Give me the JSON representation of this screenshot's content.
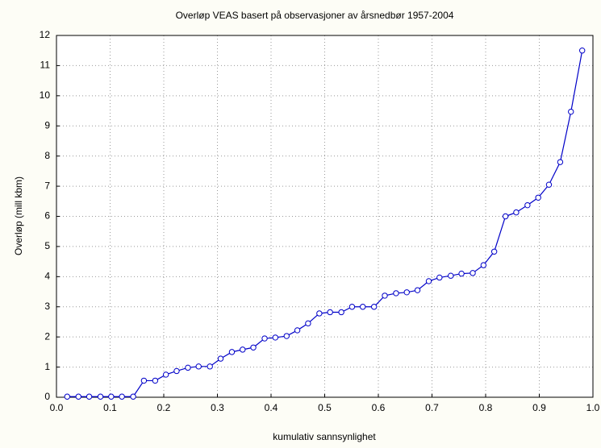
{
  "chart_data": {
    "type": "line",
    "title": "Overløp VEAS basert på observasjoner av årsnedbør 1957-2004",
    "x_label": "kumulativ sannsynlighet",
    "y_label": "Overløp (mill kbm)",
    "color": "#0000c8",
    "marker": "circle",
    "grid": true,
    "x": [
      0.02,
      0.041,
      0.061,
      0.082,
      0.102,
      0.122,
      0.143,
      0.163,
      0.184,
      0.204,
      0.224,
      0.245,
      0.265,
      0.286,
      0.306,
      0.327,
      0.347,
      0.367,
      0.388,
      0.408,
      0.429,
      0.449,
      0.469,
      0.49,
      0.51,
      0.531,
      0.551,
      0.571,
      0.592,
      0.612,
      0.633,
      0.653,
      0.673,
      0.694,
      0.714,
      0.735,
      0.755,
      0.776,
      0.796,
      0.816,
      0.837,
      0.857,
      0.878,
      0.898,
      0.918,
      0.939,
      0.959,
      0.98
    ],
    "values": [
      0.02,
      0.02,
      0.02,
      0.02,
      0.02,
      0.02,
      0.02,
      0.55,
      0.55,
      0.75,
      0.87,
      0.98,
      1.02,
      1.02,
      1.28,
      1.5,
      1.58,
      1.65,
      1.95,
      1.98,
      2.03,
      2.22,
      2.45,
      2.78,
      2.82,
      2.82,
      3.0,
      3.0,
      3.0,
      3.37,
      3.45,
      3.48,
      3.55,
      3.85,
      3.97,
      4.03,
      4.1,
      4.12,
      4.38,
      4.83,
      6.0,
      6.13,
      6.37,
      6.62,
      7.05,
      7.8,
      9.47,
      11.5
    ],
    "xlim": [
      0,
      1
    ],
    "xticks": [
      {
        "value": 0,
        "label": "0.0"
      },
      0.1,
      0.2,
      0.3,
      0.4,
      0.5,
      0.6,
      0.7,
      0.8,
      0.9,
      {
        "value": 1,
        "label": "1.0"
      }
    ],
    "ylim": [
      0,
      12
    ],
    "yticks": [
      0,
      1,
      2,
      3,
      4,
      5,
      6,
      7,
      8,
      9,
      10,
      11,
      12
    ]
  }
}
